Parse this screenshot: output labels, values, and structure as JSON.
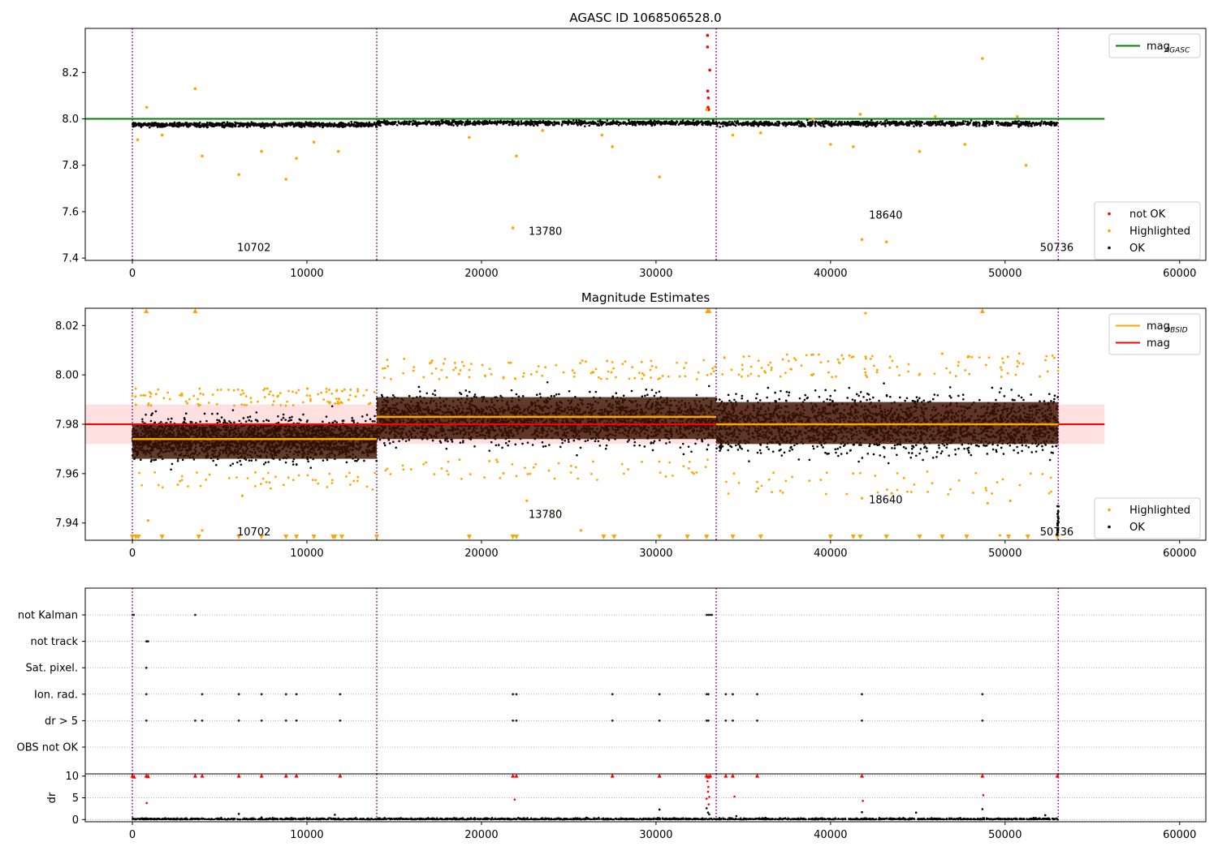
{
  "figure": {
    "panels": [
      {
        "id": "p1",
        "title": "AGASC ID 1068506528.0"
      },
      {
        "id": "p2",
        "title": "Magnitude Estimates"
      },
      {
        "id": "p3",
        "title": ""
      }
    ]
  },
  "chart_data": [
    {
      "type": "scatter",
      "title": "AGASC ID 1068506528.0",
      "xlabel": "",
      "ylabel": "",
      "xlim": [
        -2700,
        61500
      ],
      "ylim": [
        7.39,
        8.39
      ],
      "xticks": [
        0,
        10000,
        20000,
        30000,
        40000,
        50000,
        60000
      ],
      "xtick_labels": [
        "0",
        "10000",
        "20000",
        "30000",
        "40000",
        "50000",
        "60000"
      ],
      "yticks": [
        7.4,
        7.6,
        7.8,
        8.0,
        8.2
      ],
      "ytick_labels": [
        "7.4",
        "7.6",
        "7.8",
        "8.0",
        "8.2"
      ],
      "vlines": [
        0,
        14000,
        33450,
        53050
      ],
      "segments": [
        {
          "x0": 0,
          "x1": 14000,
          "center": 7.975,
          "spread": 0.012
        },
        {
          "x0": 14000,
          "x1": 33450,
          "center": 7.983,
          "spread": 0.012
        },
        {
          "x0": 33450,
          "x1": 53050,
          "center": 7.98,
          "spread": 0.013
        }
      ],
      "hlines": [
        {
          "name": "mag_AGASC",
          "y": 8.0,
          "x0": -2700,
          "x1": 55700,
          "color": "#008000"
        }
      ],
      "annotations": [
        {
          "text": "10702",
          "x": 6000,
          "y": 7.43
        },
        {
          "text": "13780",
          "x": 22700,
          "y": 7.5
        },
        {
          "text": "18640",
          "x": 42200,
          "y": 7.57
        },
        {
          "text": "50736",
          "x": 52000,
          "y": 7.43
        }
      ],
      "series": [
        {
          "name": "not OK",
          "color": "#ff0000",
          "points": [
            [
              32950,
              8.36
            ],
            [
              32950,
              8.31
            ],
            [
              33080,
              8.21
            ],
            [
              32960,
              8.12
            ],
            [
              33000,
              8.09
            ],
            [
              32980,
              8.05
            ],
            [
              33020,
              8.04
            ]
          ]
        },
        {
          "name": "Highlighted",
          "color": "#ffa500",
          "points": [
            [
              3600,
              8.13
            ],
            [
              820,
              8.05
            ],
            [
              300,
              7.91
            ],
            [
              4000,
              7.84
            ],
            [
              7400,
              7.86
            ],
            [
              6100,
              7.76
            ],
            [
              8800,
              7.74
            ],
            [
              9400,
              7.83
            ],
            [
              10400,
              7.9
            ],
            [
              11800,
              7.86
            ],
            [
              1700,
              7.93
            ],
            [
              21800,
              7.53
            ],
            [
              22000,
              7.84
            ],
            [
              19300,
              7.92
            ],
            [
              27500,
              7.88
            ],
            [
              30200,
              7.75
            ],
            [
              26900,
              7.93
            ],
            [
              23500,
              7.95
            ],
            [
              41800,
              7.48
            ],
            [
              43200,
              7.47
            ],
            [
              48700,
              8.26
            ],
            [
              51200,
              7.8
            ],
            [
              41700,
              8.02
            ],
            [
              40000,
              7.89
            ],
            [
              41300,
              7.88
            ],
            [
              45100,
              7.86
            ],
            [
              47700,
              7.89
            ],
            [
              34400,
              7.93
            ],
            [
              36000,
              7.94
            ],
            [
              32900,
              8.04
            ],
            [
              39000,
              8.0
            ],
            [
              46000,
              8.01
            ],
            [
              50700,
              8.01
            ]
          ]
        },
        {
          "name": "OK",
          "color": "#000000",
          "points": []
        }
      ],
      "legends": [
        {
          "placement": "upper right",
          "entries": [
            {
              "label": "mag",
              "sub": "AGASC",
              "type": "line",
              "color": "#008000"
            }
          ]
        },
        {
          "placement": "lower right",
          "entries": [
            {
              "label": "not OK",
              "type": "point",
              "color": "#ff0000"
            },
            {
              "label": "Highlighted",
              "type": "point",
              "color": "#ffa500"
            },
            {
              "label": "OK",
              "type": "point",
              "color": "#000000"
            }
          ]
        }
      ]
    },
    {
      "type": "scatter",
      "title": "Magnitude Estimates",
      "xlabel": "",
      "ylabel": "",
      "xlim": [
        -2700,
        61500
      ],
      "ylim": [
        7.933,
        8.027
      ],
      "xticks": [
        0,
        10000,
        20000,
        30000,
        40000,
        50000,
        60000
      ],
      "xtick_labels": [
        "0",
        "10000",
        "20000",
        "30000",
        "40000",
        "50000",
        "60000"
      ],
      "yticks": [
        7.94,
        7.96,
        7.98,
        8.0,
        8.02
      ],
      "ytick_labels": [
        "7.94",
        "7.96",
        "7.98",
        "8.00",
        "8.02"
      ],
      "vlines": [
        0,
        14000,
        33450,
        53050
      ],
      "mag": 7.98,
      "mag_band": [
        7.972,
        7.988
      ],
      "obsid_segments": [
        {
          "x0": 0,
          "x1": 14000,
          "mag": 7.974,
          "band": [
            7.966,
            7.98
          ],
          "center": 7.974,
          "spread": 0.01
        },
        {
          "x0": 14000,
          "x1": 33450,
          "mag": 7.983,
          "band": [
            7.974,
            7.991
          ],
          "center": 7.982,
          "spread": 0.012
        },
        {
          "x0": 33450,
          "x1": 53050,
          "mag": 7.98,
          "band": [
            7.972,
            7.989
          ],
          "center": 7.98,
          "spread": 0.014
        }
      ],
      "annotations": [
        {
          "text": "10702",
          "x": 6000,
          "y": 7.935
        },
        {
          "text": "13780",
          "x": 22700,
          "y": 7.942
        },
        {
          "text": "18640",
          "x": 42200,
          "y": 7.948
        },
        {
          "text": "50736",
          "x": 52000,
          "y": 7.935
        }
      ],
      "clipped_markers": {
        "top": [
          800,
          3600,
          32950,
          33050,
          48700
        ],
        "bottom": [
          0,
          200,
          350,
          1700,
          3800,
          6100,
          7400,
          8800,
          9400,
          10400,
          11500,
          11600,
          12000,
          14000,
          19300,
          21800,
          22000,
          27000,
          27600,
          30200,
          31800,
          32900,
          34400,
          36000,
          40000,
          41300,
          41700,
          43200,
          45100,
          46400,
          47800,
          50200,
          51300,
          53000
        ]
      },
      "series": [
        {
          "name": "Highlighted",
          "color": "#ffa500",
          "points": [
            [
              900,
              7.941
            ],
            [
              4000,
              7.937
            ],
            [
              6300,
              7.951
            ],
            [
              22600,
              7.949
            ],
            [
              24400,
              7.945
            ],
            [
              25700,
              7.937
            ],
            [
              41800,
              7.95
            ],
            [
              43500,
              7.952
            ],
            [
              49000,
              7.948
            ],
            [
              50300,
              7.949
            ],
            [
              42000,
              8.025
            ],
            [
              49700,
              7.935
            ]
          ]
        },
        {
          "name": "OK",
          "color": "#000000",
          "points": []
        }
      ],
      "legends": [
        {
          "placement": "upper right",
          "entries": [
            {
              "label": "mag",
              "sub": "OBSID",
              "type": "line",
              "color": "#ffa500"
            },
            {
              "label": "mag",
              "type": "line",
              "color": "#ff0000"
            }
          ]
        },
        {
          "placement": "lower right",
          "entries": [
            {
              "label": "Highlighted",
              "type": "point",
              "color": "#ffa500"
            },
            {
              "label": "OK",
              "type": "point",
              "color": "#000000"
            }
          ]
        }
      ]
    },
    {
      "type": "scatter",
      "title": "",
      "xlabel": "",
      "ylabel": "",
      "xlim": [
        -2700,
        61500
      ],
      "xticks": [
        0,
        10000,
        20000,
        30000,
        40000,
        50000,
        60000
      ],
      "xtick_labels": [
        "0",
        "10000",
        "20000",
        "30000",
        "40000",
        "50000",
        "60000"
      ],
      "vlines": [
        0,
        14000,
        33450,
        53050
      ],
      "flag_rows": [
        {
          "label": "not Kalman",
          "x": [
            0,
            80,
            3600,
            32900,
            33000,
            33100,
            33200
          ]
        },
        {
          "label": "not track",
          "x": [
            800,
            850,
            900
          ]
        },
        {
          "label": "Sat. pixel.",
          "x": [
            800
          ]
        },
        {
          "label": "Ion. rad.",
          "x": [
            800,
            4000,
            6100,
            7400,
            8800,
            9400,
            11900,
            21800,
            22000,
            27500,
            30200,
            32900,
            33000,
            34000,
            34400,
            35800,
            41800,
            48700
          ]
        },
        {
          "label": "dr > 5",
          "x": [
            800,
            3600,
            4000,
            6100,
            7400,
            8800,
            9400,
            11900,
            21800,
            22000,
            27500,
            30200,
            32900,
            33000,
            34000,
            34400,
            35800,
            41800,
            48700
          ]
        },
        {
          "label": "OBS not OK",
          "x": []
        }
      ],
      "dr": {
        "ylabel": "dr",
        "ylim": [
          -0.5,
          10.5
        ],
        "yticks": [
          0,
          5,
          10
        ],
        "ytick_labels": [
          "0",
          "5",
          "10"
        ],
        "red_points": [
          [
            0,
            10
          ],
          [
            100,
            9.8
          ],
          [
            800,
            10
          ],
          [
            900,
            9.9
          ],
          [
            820,
            3.8
          ],
          [
            3600,
            10
          ],
          [
            4000,
            10
          ],
          [
            6100,
            10
          ],
          [
            7400,
            10
          ],
          [
            8800,
            10
          ],
          [
            9400,
            10
          ],
          [
            11900,
            10
          ],
          [
            21800,
            10
          ],
          [
            22000,
            10
          ],
          [
            21900,
            4.6
          ],
          [
            27500,
            10
          ],
          [
            30200,
            10
          ],
          [
            32900,
            10
          ],
          [
            33000,
            9.8
          ],
          [
            33100,
            10
          ],
          [
            32950,
            8.8
          ],
          [
            33000,
            7.5
          ],
          [
            32980,
            6.4
          ],
          [
            33050,
            5.2
          ],
          [
            32900,
            4.8
          ],
          [
            33020,
            3.5
          ],
          [
            34000,
            10
          ],
          [
            34400,
            10
          ],
          [
            34500,
            5.3
          ],
          [
            35800,
            10
          ],
          [
            41800,
            10
          ],
          [
            41850,
            4.3
          ],
          [
            48700,
            10
          ],
          [
            48750,
            5.6
          ],
          [
            53000,
            10
          ]
        ],
        "black_points": [
          [
            6100,
            1.3
          ],
          [
            7400,
            0.5
          ],
          [
            11600,
            1.1
          ],
          [
            30200,
            2.3
          ],
          [
            32900,
            2.6
          ],
          [
            32980,
            1.6
          ],
          [
            33050,
            1.2
          ],
          [
            34600,
            0.8
          ],
          [
            41800,
            1.7
          ],
          [
            44900,
            1.6
          ],
          [
            48700,
            2.4
          ],
          [
            52300,
            1.0
          ]
        ],
        "baseline": [
          0.0,
          0.5
        ]
      }
    }
  ]
}
